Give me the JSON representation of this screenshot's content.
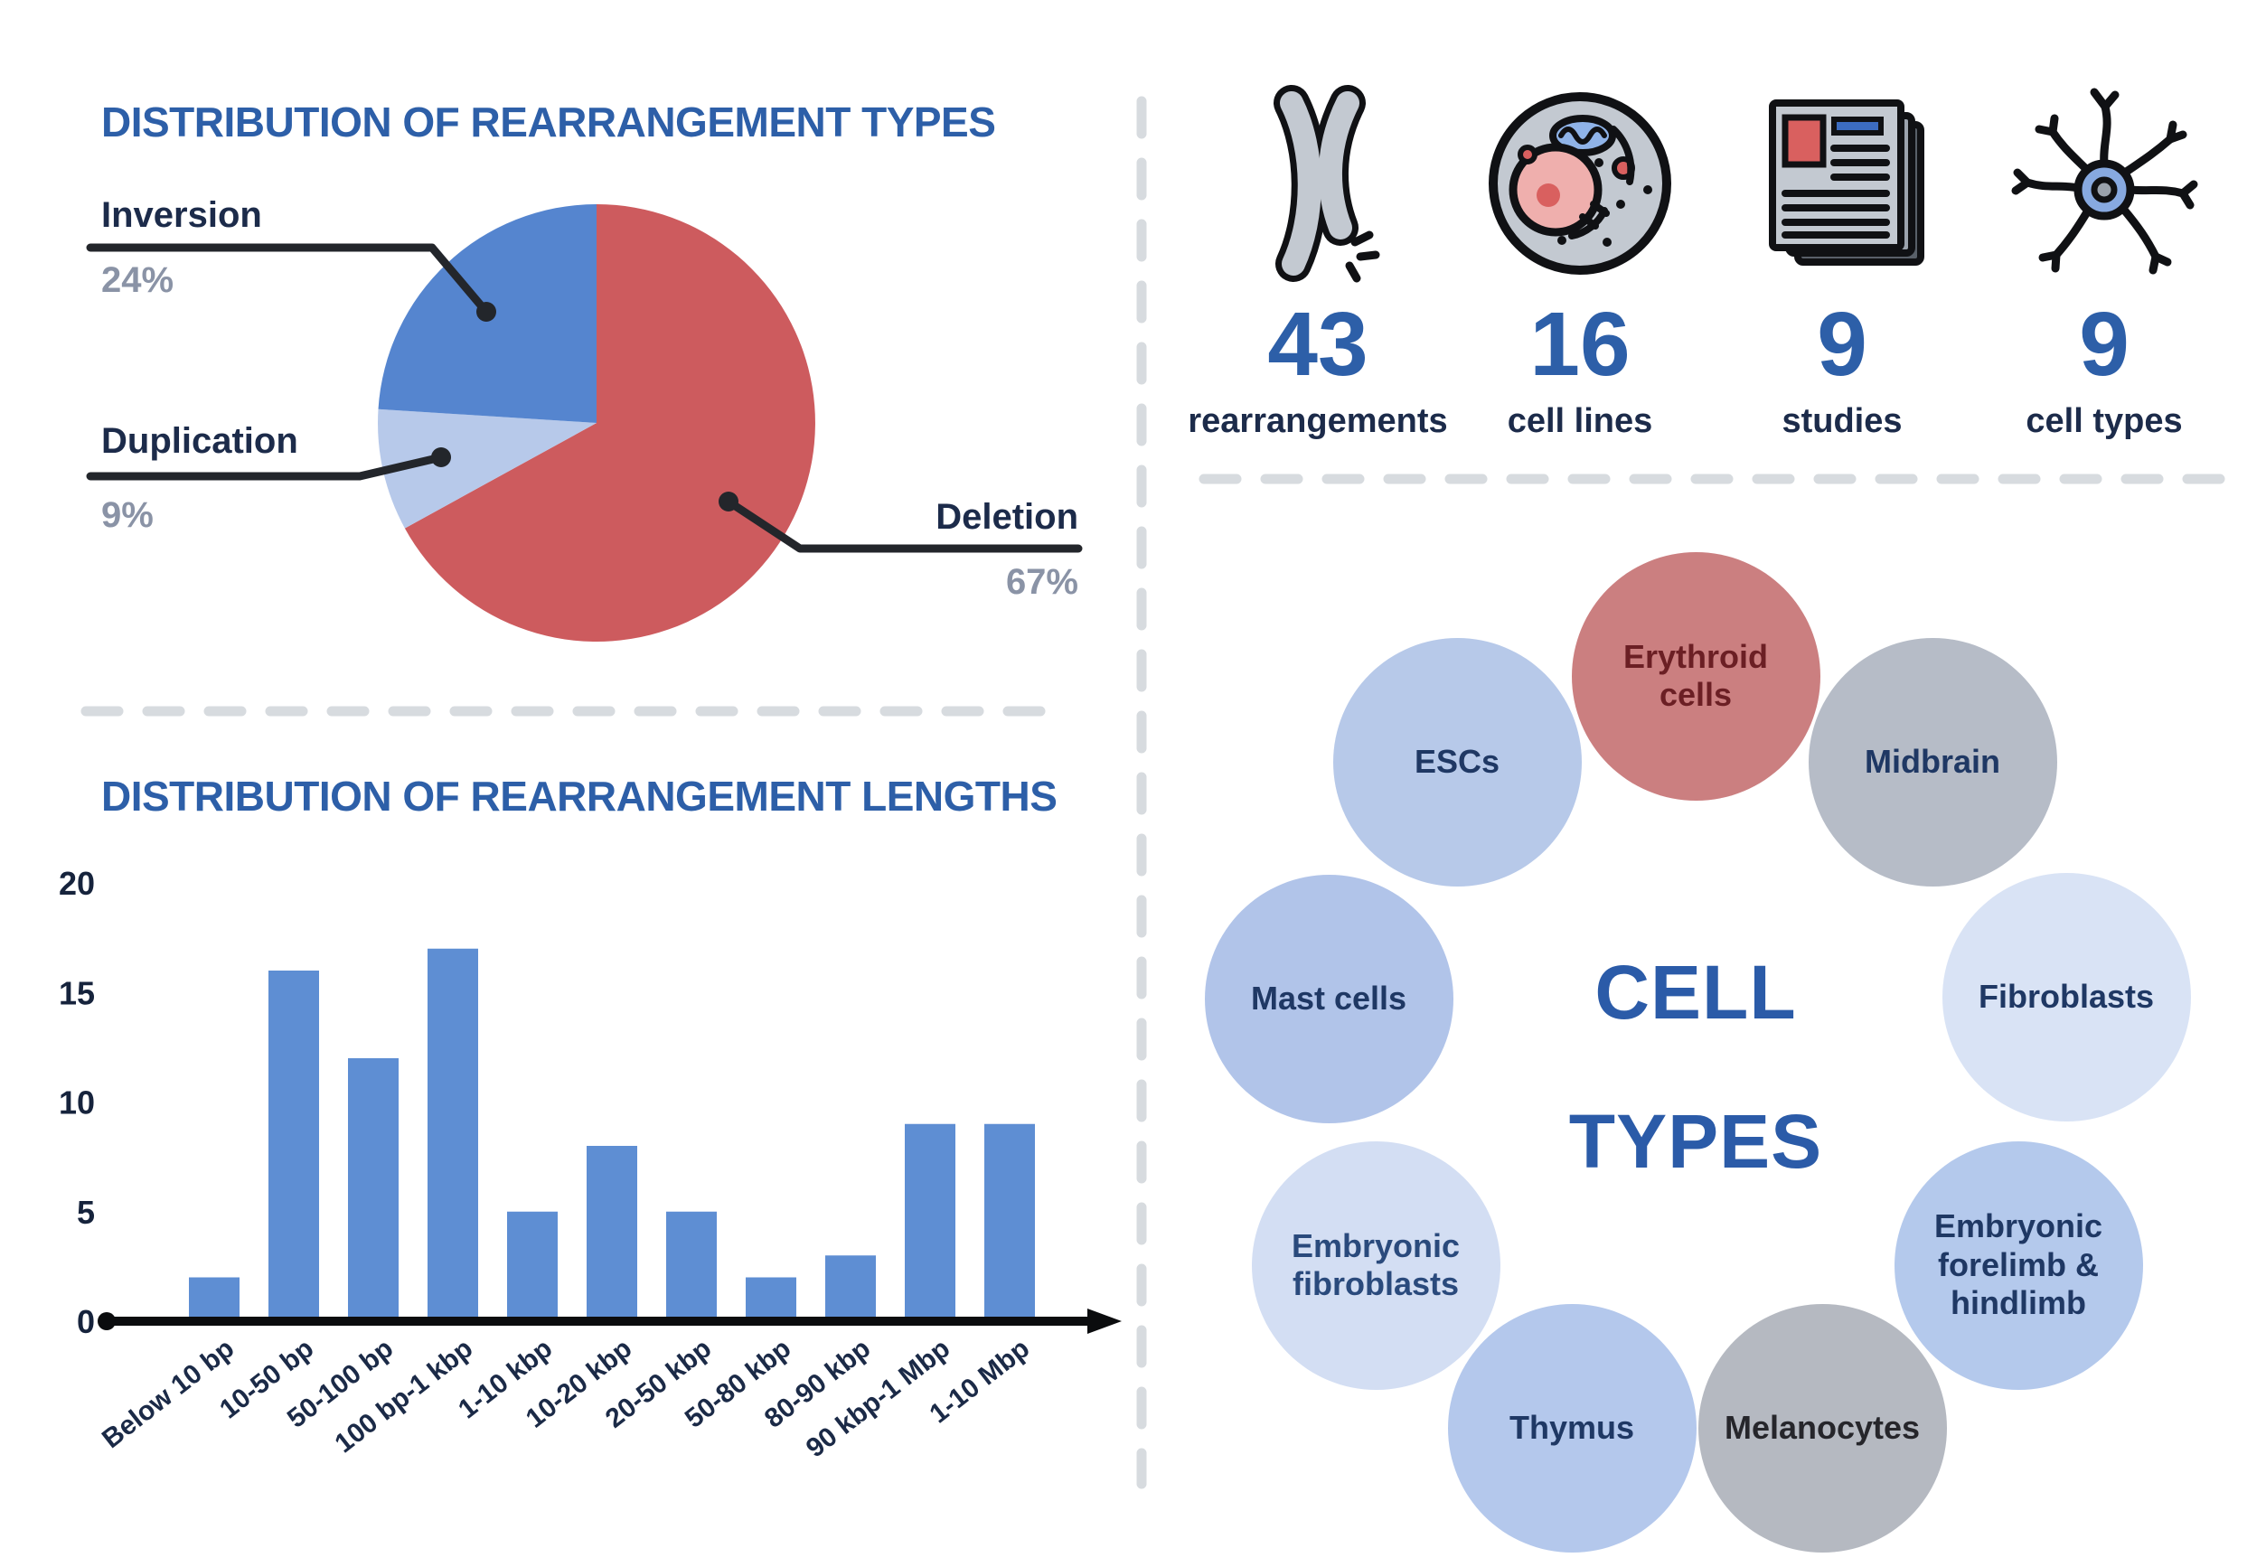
{
  "chart_data": [
    {
      "type": "pie",
      "title": "DISTRIBUTION OF REARRANGEMENT TYPES",
      "direction": "clockwise",
      "start_angle_deg": 0,
      "legend_position": "outside-callouts",
      "slices": [
        {
          "label": "Deletion",
          "value": 67,
          "pct_label": "67%",
          "color": "#cd5b5e"
        },
        {
          "label": "Duplication",
          "value": 9,
          "pct_label": "9%",
          "color": "#b7c9ea"
        },
        {
          "label": "Inversion",
          "value": 24,
          "pct_label": "24%",
          "color": "#5585cf"
        }
      ]
    },
    {
      "type": "bar",
      "title": "DISTRIBUTION OF REARRANGEMENT LENGTHS",
      "categories": [
        "Below 10 bp",
        "10-50 bp",
        "50-100 bp",
        "100 bp-1 kbp",
        "1-10 kbp",
        "10-20 kbp",
        "20-50 kbp",
        "50-80 kbp",
        "80-90 kbp",
        "90 kbp-1 Mbp",
        "1-10 Mbp"
      ],
      "values": [
        2,
        16,
        12,
        17,
        5,
        8,
        5,
        2,
        3,
        9,
        9
      ],
      "bar_color": "#5e8ed3",
      "xlabel": "",
      "ylabel": "",
      "ylim": [
        0,
        20
      ],
      "yticks": [
        0,
        5,
        10,
        15,
        20
      ],
      "grid": false
    }
  ],
  "stats": [
    {
      "icon": "chromosome-icon",
      "value": "43",
      "label": "rearrangements"
    },
    {
      "icon": "cell-icon",
      "value": "16",
      "label": "cell lines"
    },
    {
      "icon": "document-stack-icon",
      "value": "9",
      "label": "studies"
    },
    {
      "icon": "neuron-icon",
      "value": "9",
      "label": "cell types"
    }
  ],
  "cell_types_diagram": {
    "center_line1": "CELL",
    "center_line2": "TYPES",
    "center_color": "#2b5ba8",
    "circles": [
      {
        "label": "Erythroid cells",
        "bg": "#cb7f80",
        "text_color": "#6b1f24"
      },
      {
        "label": "Midbrain",
        "bg": "#b6bcc7",
        "text_color": "#1f3864"
      },
      {
        "label": "Fibroblasts",
        "bg": "#d9e3f5",
        "text_color": "#1f3864"
      },
      {
        "label": "Embryonic forelimb & hindlimb",
        "bg": "#b4c9ec",
        "text_color": "#1f3864"
      },
      {
        "label": "Melanocytes",
        "bg": "#b5b9c1",
        "text_color": "#26262b"
      },
      {
        "label": "Thymus",
        "bg": "#b4c8ec",
        "text_color": "#1f3864"
      },
      {
        "label": "Embryonic fibroblasts",
        "bg": "#d3def3",
        "text_color": "#2a4a7c"
      },
      {
        "label": "Mast cells",
        "bg": "#b1c4e9",
        "text_color": "#1f3864"
      },
      {
        "label": "ESCs",
        "bg": "#b7c9e9",
        "text_color": "#1f3864"
      }
    ]
  },
  "colors": {
    "title_blue": "#2d5fa8",
    "label_navy": "#1c2b4a",
    "tick_navy": "#16233c",
    "pct_gray": "#8a93a6",
    "leader_dark": "#23262b",
    "divider_gray": "#d7dbdf"
  }
}
